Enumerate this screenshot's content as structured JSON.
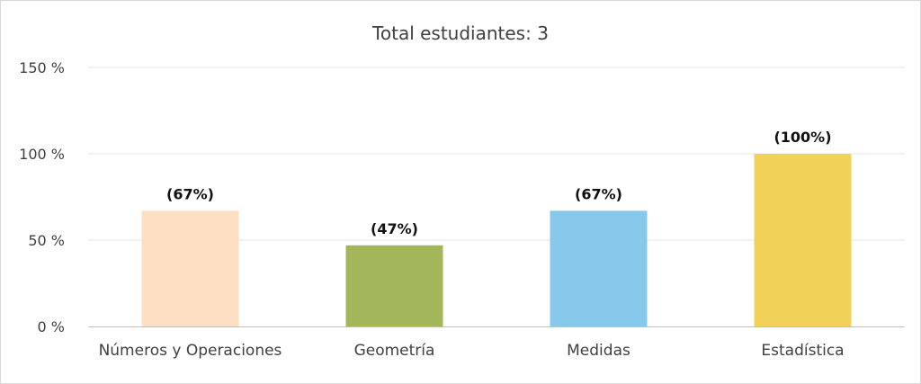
{
  "chart_data": {
    "type": "bar",
    "title": "Total estudiantes: 3",
    "categories": [
      "Números y Operaciones",
      "Geometría",
      "Medidas",
      "Estadística"
    ],
    "values": [
      67,
      47,
      67,
      100
    ],
    "data_labels": [
      "(67%)",
      "(47%)",
      "(67%)",
      "(100%)"
    ],
    "colors": [
      "#ffdfc4",
      "#a3b75a",
      "#87c8eb",
      "#f1d157"
    ],
    "ylim": [
      0,
      150
    ],
    "yticks": [
      0,
      50,
      100,
      150
    ],
    "ytick_labels": [
      "0 %",
      "50 %",
      "100 %",
      "150 %"
    ],
    "xlabel": "",
    "ylabel": "",
    "grid": true,
    "legend": "none"
  }
}
